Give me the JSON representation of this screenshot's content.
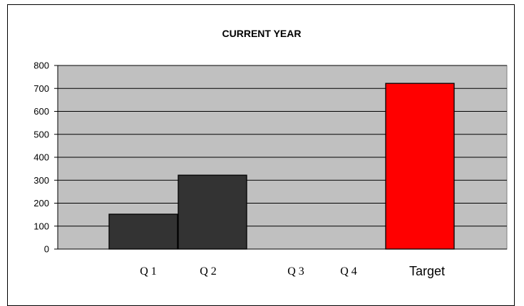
{
  "chart_data": {
    "type": "bar",
    "title": "CURRENT YEAR",
    "xlabel": "",
    "ylabel": "",
    "categories": [
      "Q 1",
      "Q 2",
      "Q 3",
      "Q 4",
      "Target"
    ],
    "values": [
      152,
      322,
      0,
      0,
      722
    ],
    "bar_colors": [
      "#333333",
      "#333333",
      "#333333",
      "#333333",
      "#ff0000"
    ],
    "ylim": [
      0,
      800
    ],
    "yticks": [
      0,
      100,
      200,
      300,
      400,
      500,
      600,
      700,
      800
    ],
    "grid": true,
    "plot_background": "#c0c0c0",
    "legend": "none"
  }
}
